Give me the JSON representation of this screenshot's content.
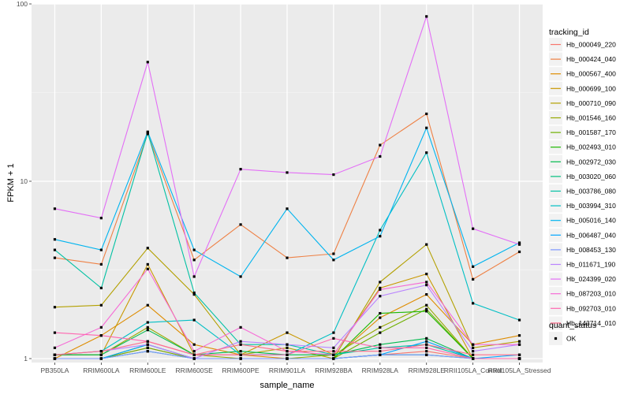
{
  "chart_data": {
    "type": "line",
    "xlabel": "sample_name",
    "ylabel": "FPKM + 1",
    "y_scale": "log10",
    "ylim": [
      0.95,
      100
    ],
    "y_ticks": [
      {
        "value": 1,
        "label": "1"
      },
      {
        "value": 10,
        "label": "10"
      },
      {
        "value": 100,
        "label": "100"
      }
    ],
    "categories": [
      "PB350LA",
      "RRIM600LA",
      "RRIM600LE",
      "RRIM600SE",
      "RRIM600PE",
      "RRIM901LA",
      "RRIM928BA",
      "RRIM928LA",
      "RRIM928LE",
      "RRII105LA_Control",
      "RRII105LA_Stressed"
    ],
    "grid": true,
    "background": "#ebebeb",
    "legend": {
      "title": "tracking_id",
      "position": "right"
    },
    "shape_legend": {
      "title": "quant_status",
      "entries": [
        "OK"
      ]
    },
    "series": [
      {
        "name": "Hb_000049_220",
        "color": "#f8766d",
        "values": [
          1.0,
          1.0,
          1.15,
          1.0,
          1.0,
          1.0,
          1.0,
          1.05,
          1.1,
          1.0,
          1.0
        ]
      },
      {
        "name": "Hb_000424_040",
        "color": "#ee8044",
        "values": [
          3.7,
          3.4,
          18.5,
          3.6,
          5.7,
          3.7,
          3.9,
          16.0,
          24.0,
          2.8,
          4.0
        ]
      },
      {
        "name": "Hb_000567_400",
        "color": "#de8c00",
        "values": [
          1.0,
          1.35,
          2.0,
          1.2,
          1.05,
          1.0,
          1.0,
          1.7,
          2.3,
          1.2,
          1.35
        ]
      },
      {
        "name": "Hb_000699_100",
        "color": "#c99800",
        "values": [
          1.05,
          1.05,
          3.4,
          1.05,
          1.05,
          1.4,
          1.05,
          2.5,
          3.0,
          1.0,
          1.0
        ]
      },
      {
        "name": "Hb_000710_090",
        "color": "#b3a000",
        "values": [
          1.95,
          2.0,
          4.2,
          2.3,
          1.05,
          1.15,
          1.0,
          2.7,
          4.4,
          1.15,
          1.25
        ]
      },
      {
        "name": "Hb_001546_160",
        "color": "#96a900",
        "values": [
          1.05,
          1.05,
          1.5,
          1.05,
          1.0,
          1.0,
          1.05,
          1.5,
          2.0,
          1.0,
          1.0
        ]
      },
      {
        "name": "Hb_001587_170",
        "color": "#6fb000",
        "values": [
          1.0,
          1.0,
          1.15,
          1.0,
          1.0,
          1.0,
          1.0,
          1.4,
          1.9,
          1.0,
          1.0
        ]
      },
      {
        "name": "Hb_002493_010",
        "color": "#1db800",
        "values": [
          1.0,
          1.0,
          1.2,
          1.0,
          1.0,
          1.0,
          1.0,
          1.8,
          1.85,
          1.0,
          1.0
        ]
      },
      {
        "name": "Hb_002972_030",
        "color": "#00bb4e",
        "values": [
          1.05,
          1.05,
          1.45,
          1.05,
          1.1,
          1.05,
          1.05,
          1.2,
          1.3,
          1.0,
          1.0
        ]
      },
      {
        "name": "Hb_003020_060",
        "color": "#00bf7d",
        "values": [
          1.0,
          1.0,
          1.1,
          1.0,
          1.0,
          1.0,
          1.0,
          1.05,
          1.05,
          1.0,
          1.0
        ]
      },
      {
        "name": "Hb_003786_080",
        "color": "#00c1a3",
        "values": [
          4.1,
          2.5,
          18.8,
          2.35,
          1.2,
          1.2,
          1.05,
          1.15,
          1.2,
          1.0,
          1.0
        ]
      },
      {
        "name": "Hb_003994_310",
        "color": "#00bfc4",
        "values": [
          1.05,
          1.1,
          1.6,
          1.65,
          1.05,
          1.05,
          1.4,
          5.3,
          14.5,
          2.05,
          1.65
        ]
      },
      {
        "name": "Hb_005016_140",
        "color": "#00b4ef",
        "values": [
          4.7,
          4.1,
          19.0,
          4.1,
          2.9,
          7.0,
          3.6,
          4.9,
          20.0,
          3.3,
          4.5
        ]
      },
      {
        "name": "Hb_006487_040",
        "color": "#00a5ff",
        "values": [
          1.0,
          1.0,
          1.2,
          1.0,
          1.0,
          1.0,
          1.0,
          1.05,
          1.25,
          1.0,
          1.05
        ]
      },
      {
        "name": "Hb_008453_130",
        "color": "#7c96ff",
        "values": [
          1.0,
          1.0,
          1.1,
          1.0,
          1.0,
          1.0,
          1.0,
          1.05,
          1.05,
          1.0,
          1.0
        ]
      },
      {
        "name": "Hb_011671_190",
        "color": "#b983ff",
        "values": [
          1.05,
          1.1,
          1.2,
          1.0,
          1.25,
          1.2,
          1.15,
          2.25,
          2.6,
          1.1,
          1.2
        ]
      },
      {
        "name": "Hb_024399_020",
        "color": "#e36ef6",
        "values": [
          7.0,
          6.2,
          47.0,
          2.9,
          11.7,
          11.2,
          10.9,
          13.8,
          85.0,
          5.4,
          4.4
        ]
      },
      {
        "name": "Hb_087203_010",
        "color": "#f66bd6",
        "values": [
          1.15,
          1.5,
          3.2,
          1.1,
          1.5,
          1.1,
          1.05,
          2.45,
          2.7,
          1.2,
          1.2
        ]
      },
      {
        "name": "Hb_092703_010",
        "color": "#ff67b0",
        "values": [
          1.4,
          1.35,
          1.25,
          1.05,
          1.05,
          1.05,
          1.3,
          1.15,
          1.15,
          1.0,
          1.0
        ]
      },
      {
        "name": "Hb_143714_010",
        "color": "#fe6d8c",
        "values": [
          1.05,
          1.1,
          1.25,
          1.05,
          1.2,
          1.1,
          1.1,
          1.1,
          1.2,
          1.05,
          1.05
        ]
      }
    ]
  }
}
